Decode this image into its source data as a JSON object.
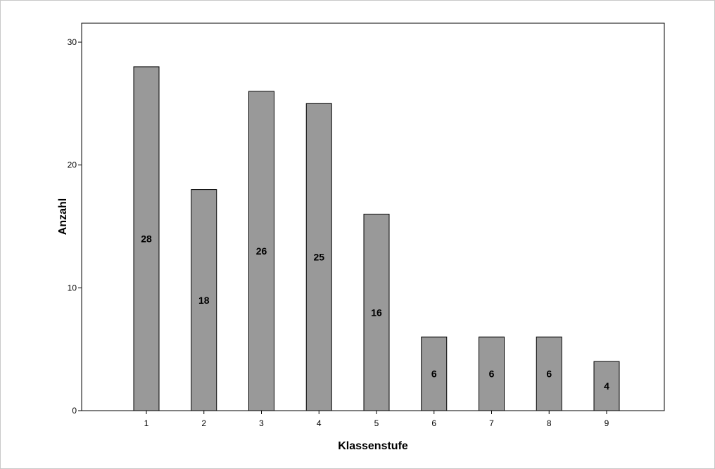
{
  "chart_data": {
    "type": "bar",
    "categories": [
      "1",
      "2",
      "3",
      "4",
      "5",
      "6",
      "7",
      "8",
      "9"
    ],
    "values": [
      28,
      18,
      26,
      25,
      16,
      6,
      6,
      6,
      4
    ],
    "data_labels": [
      "28",
      "18",
      "26",
      "25",
      "16",
      "6",
      "6",
      "6",
      "4"
    ],
    "title": "",
    "xlabel": "Klassenstufe",
    "ylabel": "Anzahl",
    "ylim": [
      0,
      30
    ],
    "yticks": [
      "0",
      "10",
      "20",
      "30"
    ],
    "grid": false,
    "legend": "none",
    "bar_color": "#999999",
    "bar_edge_color": "#000000"
  }
}
